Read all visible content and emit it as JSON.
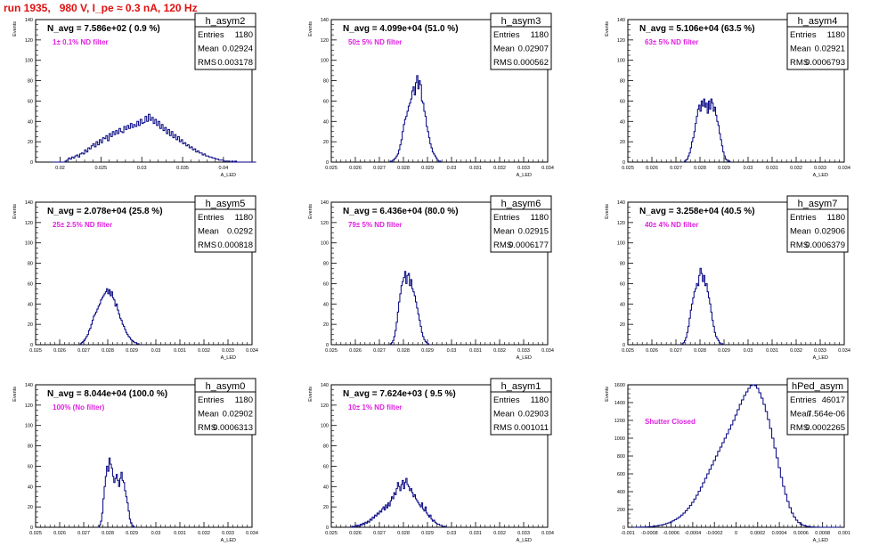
{
  "header": {
    "run_label": "run 1935,   980 V, I_pe ≈ 0.3 nA, 120 Hz"
  },
  "chart_data": [
    {
      "type": "bar",
      "name": "h_asym2",
      "header_text": "N_avg = 7.586e+02 ( 0.9 %)",
      "annotation": "1± 0.1% ND filter",
      "stats": {
        "entries_label": "Entries",
        "entries": "1180",
        "mean_label": "Mean",
        "mean": "0.02924",
        "rms_label": "RMS",
        "rms": "0.003178"
      },
      "xlabel": "A_LED",
      "ylabel": "Events",
      "xlim": [
        0.017,
        0.0435
      ],
      "ylim": [
        0,
        140
      ],
      "xticks": [
        "0.02",
        "0.025",
        "0.03",
        "0.035",
        "0.04"
      ],
      "yticks": [
        "0",
        "20",
        "40",
        "60",
        "80",
        "100",
        "120",
        "140"
      ],
      "bin_start": 0.019,
      "bin_width": 0.0002,
      "values": [
        0,
        0,
        0,
        0,
        0,
        0,
        0,
        0,
        1,
        2,
        4,
        3,
        5,
        4,
        6,
        7,
        5,
        8,
        9,
        8,
        12,
        10,
        14,
        13,
        16,
        18,
        15,
        20,
        17,
        22,
        19,
        24,
        23,
        26,
        21,
        28,
        25,
        30,
        27,
        31,
        28,
        33,
        30,
        29,
        35,
        32,
        36,
        33,
        38,
        34,
        37,
        35,
        40,
        36,
        42,
        38,
        39,
        45,
        40,
        47,
        41,
        44,
        38,
        42,
        36,
        40,
        33,
        37,
        31,
        34,
        28,
        32,
        26,
        30,
        24,
        27,
        22,
        25,
        20,
        22,
        18,
        19,
        16,
        17,
        14,
        15,
        12,
        13,
        10,
        11,
        9,
        9,
        7,
        8,
        6,
        6,
        5,
        5,
        4,
        4,
        3,
        3,
        2,
        2,
        2,
        1,
        1,
        1,
        1,
        0,
        1,
        0,
        1,
        0,
        0,
        0,
        0,
        0,
        0,
        0,
        0,
        0,
        0,
        0,
        0
      ]
    },
    {
      "type": "bar",
      "name": "h_asym3",
      "header_text": "N_avg = 4.099e+04 (51.0 %)",
      "annotation": "50± 5% ND filter",
      "stats": {
        "entries_label": "Entries",
        "entries": "1180",
        "mean_label": "Mean",
        "mean": "0.02907",
        "rms_label": "RMS",
        "rms": "0.000562"
      },
      "xlabel": "A_LED",
      "ylabel": "Events",
      "xlim": [
        0.025,
        0.034
      ],
      "ylim": [
        0,
        140
      ],
      "xticks": [
        "0.025",
        "0.026",
        "0.027",
        "0.028",
        "0.029",
        "0.03",
        "0.031",
        "0.032",
        "0.033",
        "0.034"
      ],
      "yticks": [
        "0",
        "20",
        "40",
        "60",
        "80",
        "100",
        "120",
        "140"
      ],
      "bin_start": 0.0274,
      "bin_width": 5e-05,
      "values": [
        0,
        1,
        1,
        2,
        3,
        4,
        6,
        8,
        12,
        17,
        22,
        30,
        37,
        42,
        45,
        50,
        55,
        58,
        62,
        70,
        74,
        66,
        78,
        85,
        72,
        80,
        76,
        60,
        58,
        50,
        45,
        35,
        30,
        24,
        18,
        14,
        10,
        8,
        6,
        4,
        2,
        1,
        1,
        0
      ]
    },
    {
      "type": "bar",
      "name": "h_asym4",
      "header_text": "N_avg = 5.106e+04 (63.5 %)",
      "annotation": "63± 5% ND filter",
      "stats": {
        "entries_label": "Entries",
        "entries": "1180",
        "mean_label": "Mean",
        "mean": "0.02921",
        "rms_label": "RMS",
        "rms": "0.0006793"
      },
      "xlabel": "A_LED",
      "ylabel": "Events",
      "xlim": [
        0.025,
        0.034
      ],
      "ylim": [
        0,
        140
      ],
      "xticks": [
        "0.025",
        "0.026",
        "0.027",
        "0.028",
        "0.029",
        "0.03",
        "0.031",
        "0.032",
        "0.033",
        "0.034"
      ],
      "yticks": [
        "0",
        "20",
        "40",
        "60",
        "80",
        "100",
        "120",
        "140"
      ],
      "bin_start": 0.0273,
      "bin_width": 5e-05,
      "values": [
        0,
        1,
        2,
        3,
        6,
        9,
        14,
        20,
        24,
        30,
        38,
        45,
        52,
        56,
        50,
        60,
        55,
        62,
        54,
        58,
        48,
        60,
        52,
        62,
        58,
        50,
        54,
        46,
        40,
        36,
        28,
        22,
        16,
        10,
        6,
        3,
        2,
        1,
        1,
        0
      ]
    },
    {
      "type": "bar",
      "name": "h_asym5",
      "header_text": "N_avg = 2.078e+04 (25.8 %)",
      "annotation": "25± 2.5% ND filter",
      "stats": {
        "entries_label": "Entries",
        "entries": "1180",
        "mean_label": "Mean",
        "mean": "0.0292",
        "rms_label": "RMS",
        "rms": "0.000818"
      },
      "xlabel": "A_LED",
      "ylabel": "Events",
      "xlim": [
        0.025,
        0.034
      ],
      "ylim": [
        0,
        140
      ],
      "xticks": [
        "0.025",
        "0.026",
        "0.027",
        "0.028",
        "0.029",
        "0.03",
        "0.031",
        "0.032",
        "0.033",
        "0.034"
      ],
      "yticks": [
        "0",
        "20",
        "40",
        "60",
        "80",
        "100",
        "120",
        "140"
      ],
      "bin_start": 0.0268,
      "bin_width": 5e-05,
      "values": [
        0,
        1,
        2,
        3,
        4,
        6,
        8,
        10,
        14,
        16,
        20,
        24,
        28,
        30,
        32,
        35,
        38,
        40,
        44,
        46,
        48,
        50,
        52,
        55,
        50,
        54,
        48,
        52,
        46,
        44,
        38,
        40,
        34,
        30,
        26,
        24,
        20,
        18,
        15,
        12,
        10,
        8,
        7,
        5,
        4,
        3,
        2,
        2,
        1,
        1,
        0
      ]
    },
    {
      "type": "bar",
      "name": "h_asym6",
      "header_text": "N_avg = 6.436e+04 (80.0 %)",
      "annotation": "79± 5% ND filter",
      "stats": {
        "entries_label": "Entries",
        "entries": "1180",
        "mean_label": "Mean",
        "mean": "0.02915",
        "rms_label": "RMS",
        "rms": "0.0006177"
      },
      "xlabel": "A_LED",
      "ylabel": "Events",
      "xlim": [
        0.025,
        0.034
      ],
      "ylim": [
        0,
        140
      ],
      "xticks": [
        "0.025",
        "0.026",
        "0.027",
        "0.028",
        "0.029",
        "0.03",
        "0.031",
        "0.032",
        "0.033",
        "0.034"
      ],
      "yticks": [
        "0",
        "20",
        "40",
        "60",
        "80",
        "100",
        "120",
        "140"
      ],
      "bin_start": 0.0274,
      "bin_width": 5e-05,
      "values": [
        0,
        1,
        2,
        4,
        8,
        14,
        22,
        32,
        42,
        50,
        58,
        62,
        66,
        72,
        60,
        68,
        70,
        58,
        64,
        55,
        52,
        48,
        42,
        36,
        30,
        24,
        18,
        12,
        8,
        5,
        3,
        2,
        1,
        0
      ]
    },
    {
      "type": "bar",
      "name": "h_asym7",
      "header_text": "N_avg = 3.258e+04 (40.5 %)",
      "annotation": "40± 4% ND filter",
      "stats": {
        "entries_label": "Entries",
        "entries": "1180",
        "mean_label": "Mean",
        "mean": "0.02906",
        "rms_label": "RMS",
        "rms": "0.0006379"
      },
      "xlabel": "A_LED",
      "ylabel": "Events",
      "xlim": [
        0.025,
        0.034
      ],
      "ylim": [
        0,
        140
      ],
      "xticks": [
        "0.025",
        "0.026",
        "0.027",
        "0.028",
        "0.029",
        "0.03",
        "0.031",
        "0.032",
        "0.033",
        "0.034"
      ],
      "yticks": [
        "0",
        "20",
        "40",
        "60",
        "80",
        "100",
        "120",
        "140"
      ],
      "bin_start": 0.0272,
      "bin_width": 5e-05,
      "values": [
        0,
        1,
        2,
        4,
        7,
        12,
        18,
        26,
        34,
        40,
        46,
        52,
        55,
        60,
        58,
        68,
        75,
        70,
        62,
        68,
        58,
        60,
        52,
        46,
        40,
        32,
        24,
        18,
        12,
        8,
        6,
        4,
        2,
        1,
        1,
        0
      ]
    },
    {
      "type": "bar",
      "name": "h_asym0",
      "header_text": "N_avg = 8.044e+04 (100.0 %)",
      "annotation": "100% (No filter)",
      "stats": {
        "entries_label": "Entries",
        "entries": "1180",
        "mean_label": "Mean",
        "mean": "0.02902",
        "rms_label": "RMS",
        "rms": "0.0006313"
      },
      "xlabel": "A_LED",
      "ylabel": "Events",
      "xlim": [
        0.025,
        0.034
      ],
      "ylim": [
        0,
        140
      ],
      "xticks": [
        "0.025",
        "0.026",
        "0.027",
        "0.028",
        "0.029",
        "0.03",
        "0.031",
        "0.032",
        "0.033",
        "0.034"
      ],
      "yticks": [
        "0",
        "20",
        "40",
        "60",
        "80",
        "100",
        "120",
        "140"
      ],
      "bin_start": 0.0276,
      "bin_width": 5e-05,
      "values": [
        0,
        2,
        6,
        14,
        28,
        40,
        50,
        60,
        55,
        68,
        62,
        58,
        50,
        44,
        48,
        52,
        46,
        40,
        48,
        54,
        46,
        44,
        36,
        30,
        24,
        16,
        8,
        4,
        2,
        1,
        0
      ]
    },
    {
      "type": "bar",
      "name": "h_asym1",
      "header_text": "N_avg = 7.624e+03 ( 9.5 %)",
      "annotation": "10± 1% ND filter",
      "stats": {
        "entries_label": "Entries",
        "entries": "1180",
        "mean_label": "Mean",
        "mean": "0.02903",
        "rms_label": "RMS",
        "rms": "0.001011"
      },
      "xlabel": "A_LED",
      "ylabel": "Events",
      "xlim": [
        0.025,
        0.034
      ],
      "ylim": [
        0,
        140
      ],
      "xticks": [
        "0.025",
        "0.026",
        "0.027",
        "0.028",
        "0.029",
        "0.03",
        "0.031",
        "0.032",
        "0.033",
        "0.034"
      ],
      "yticks": [
        "0",
        "20",
        "40",
        "60",
        "80",
        "100",
        "120",
        "140"
      ],
      "bin_start": 0.0258,
      "bin_width": 5e-05,
      "values": [
        0,
        1,
        0,
        1,
        2,
        1,
        2,
        1,
        3,
        2,
        4,
        3,
        5,
        4,
        6,
        5,
        8,
        7,
        10,
        9,
        12,
        11,
        14,
        13,
        16,
        15,
        18,
        20,
        17,
        22,
        19,
        24,
        21,
        26,
        30,
        28,
        34,
        32,
        38,
        44,
        40,
        36,
        42,
        46,
        38,
        44,
        48,
        42,
        40,
        36,
        38,
        34,
        30,
        32,
        28,
        26,
        24,
        22,
        20,
        24,
        18,
        16,
        20,
        14,
        12,
        10,
        12,
        8,
        6,
        7,
        5,
        4,
        3,
        3,
        2,
        2,
        1,
        1,
        1,
        0
      ]
    },
    {
      "type": "bar",
      "name": "hPed_asym",
      "header_text": "",
      "annotation": "Shutter Closed",
      "stats": {
        "entries_label": "Entries",
        "entries": "46017",
        "mean_label": "Mean",
        "mean": "7.564e-06",
        "rms_label": "RMS",
        "rms": "0.0002265"
      },
      "xlabel": "A_LED",
      "ylabel": "Events",
      "xlim": [
        -0.001,
        0.001
      ],
      "ylim": [
        0,
        1600
      ],
      "xticks": [
        "-0.001",
        "-0.0008",
        "-0.0006",
        "-0.0004",
        "-0.0002",
        "0",
        "0.0002",
        "0.0004",
        "0.0006",
        "0.0008",
        "0.001"
      ],
      "yticks": [
        "0",
        "200",
        "400",
        "600",
        "800",
        "1000",
        "1200",
        "1400",
        "1600"
      ],
      "bin_start": -0.00095,
      "bin_width": 2e-05,
      "values": [
        0,
        0,
        1,
        1,
        2,
        3,
        4,
        6,
        8,
        10,
        14,
        18,
        22,
        28,
        34,
        42,
        50,
        60,
        72,
        86,
        100,
        118,
        138,
        160,
        186,
        214,
        246,
        280,
        318,
        360,
        404,
        450,
        500,
        550,
        600,
        650,
        700,
        750,
        800,
        852,
        900,
        950,
        1000,
        1050,
        1100,
        1150,
        1200,
        1260,
        1320,
        1380,
        1430,
        1480,
        1520,
        1560,
        1590,
        1610,
        1590,
        1560,
        1510,
        1450,
        1380,
        1300,
        1210,
        1110,
        1000,
        890,
        780,
        670,
        560,
        460,
        370,
        290,
        220,
        160,
        115,
        80,
        54,
        36,
        24,
        16,
        10,
        6,
        4,
        2,
        1,
        1,
        0,
        0,
        0,
        0,
        0,
        0,
        0,
        0,
        0,
        0
      ]
    }
  ]
}
